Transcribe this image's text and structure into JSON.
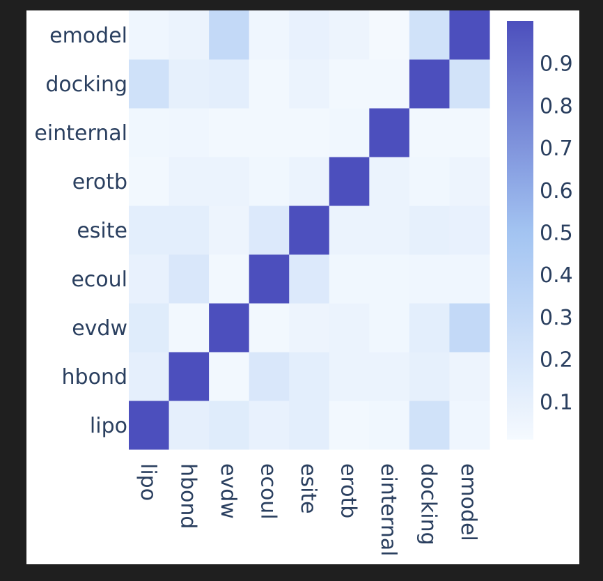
{
  "chart_data": {
    "type": "heatmap",
    "title": "",
    "xlabel": "",
    "ylabel": "",
    "x": [
      "lipo",
      "hbond",
      "evdw",
      "ecoul",
      "esite",
      "erotb",
      "einternal",
      "docking",
      "emodel"
    ],
    "y": [
      "lipo",
      "hbond",
      "evdw",
      "ecoul",
      "esite",
      "erotb",
      "einternal",
      "docking",
      "emodel"
    ],
    "z": [
      [
        1.0,
        0.11,
        0.14,
        0.09,
        0.12,
        0.03,
        0.04,
        0.23,
        0.05
      ],
      [
        0.11,
        1.0,
        0.03,
        0.18,
        0.12,
        0.07,
        0.07,
        0.1,
        0.06
      ],
      [
        0.14,
        0.03,
        1.0,
        0.03,
        0.06,
        0.07,
        0.04,
        0.12,
        0.31
      ],
      [
        0.09,
        0.18,
        0.03,
        1.0,
        0.16,
        0.04,
        0.04,
        0.05,
        0.05
      ],
      [
        0.12,
        0.12,
        0.06,
        0.16,
        1.0,
        0.07,
        0.07,
        0.1,
        0.09
      ],
      [
        0.03,
        0.07,
        0.07,
        0.04,
        0.07,
        1.0,
        0.07,
        0.04,
        0.06
      ],
      [
        0.04,
        0.05,
        0.03,
        0.03,
        0.03,
        0.04,
        1.0,
        0.03,
        0.03
      ],
      [
        0.24,
        0.1,
        0.12,
        0.03,
        0.07,
        0.03,
        0.03,
        1.0,
        0.22
      ],
      [
        0.05,
        0.07,
        0.31,
        0.05,
        0.09,
        0.06,
        0.02,
        0.23,
        1.0
      ]
    ],
    "zmin": 0.0,
    "zmax": 1.0,
    "colorscale": {
      "low": "#f7fbff",
      "mid": "#a3c4f2",
      "high": "#4c4fbd"
    },
    "colorbar": {
      "ticks": [
        0.1,
        0.2,
        0.3,
        0.4,
        0.5,
        0.6,
        0.7,
        0.8,
        0.9
      ],
      "tick_labels": [
        "0.1",
        "0.2",
        "0.3",
        "0.4",
        "0.5",
        "0.6",
        "0.7",
        "0.8",
        "0.9"
      ],
      "range": [
        0.01,
        1.0
      ]
    },
    "text_color": "#2a3f5f"
  }
}
